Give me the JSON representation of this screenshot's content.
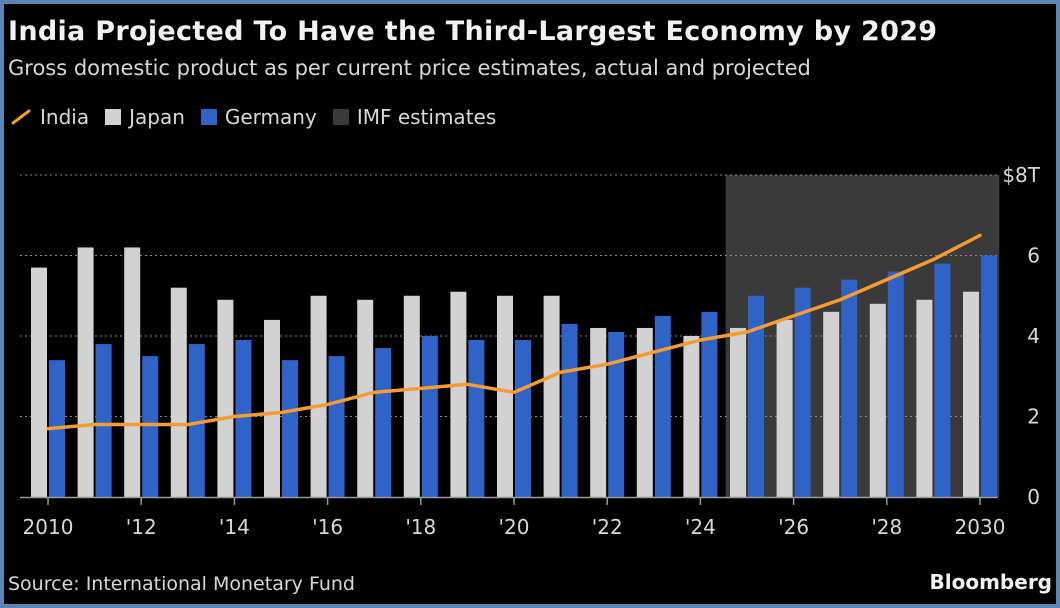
{
  "colors": {
    "india": "#f39c33",
    "japan": "#d2d2d2",
    "germany": "#2f63c7",
    "imf_band": "#3a3a3a",
    "background": "#000000",
    "grid": "#8a8a8a",
    "text": "#d8d8d8"
  },
  "legend": [
    {
      "label": "India",
      "swatch": "line",
      "color_key": "india"
    },
    {
      "label": "Japan",
      "swatch": "square",
      "color_key": "japan"
    },
    {
      "label": "Germany",
      "swatch": "square",
      "color_key": "germany"
    },
    {
      "label": "IMF estimates",
      "swatch": "square",
      "color_key": "imf_band"
    }
  ],
  "source": "Source: International Monetary Fund",
  "brand": "Bloomberg",
  "chart_data": {
    "type": "bar",
    "title": "India Projected To Have the Third-Largest Economy by 2029",
    "subtitle": "Gross domestic product as per current price estimates, actual and projected",
    "legend_position": "top-left",
    "grid": true,
    "y_axis_position": "right",
    "ylim": [
      0,
      8
    ],
    "yticks": [
      {
        "value": 0,
        "label": "0"
      },
      {
        "value": 2,
        "label": "2"
      },
      {
        "value": 4,
        "label": "4"
      },
      {
        "value": 6,
        "label": "6"
      },
      {
        "value": 8,
        "label": "$8T"
      }
    ],
    "categories": [
      2010,
      2011,
      2012,
      2013,
      2014,
      2015,
      2016,
      2017,
      2018,
      2019,
      2020,
      2021,
      2022,
      2023,
      2024,
      2025,
      2026,
      2027,
      2028,
      2029,
      2030
    ],
    "xtick_labels": [
      {
        "year": 2010,
        "label": "2010"
      },
      {
        "year": 2012,
        "label": "'12"
      },
      {
        "year": 2014,
        "label": "'14"
      },
      {
        "year": 2016,
        "label": "'16"
      },
      {
        "year": 2018,
        "label": "'18"
      },
      {
        "year": 2020,
        "label": "'20"
      },
      {
        "year": 2022,
        "label": "'22"
      },
      {
        "year": 2024,
        "label": "'24"
      },
      {
        "year": 2026,
        "label": "'26"
      },
      {
        "year": 2028,
        "label": "'28"
      },
      {
        "year": 2030,
        "label": "2030"
      }
    ],
    "imf_estimates_range": [
      2025,
      2030
    ],
    "series": [
      {
        "name": "Japan",
        "type": "bar",
        "color_key": "japan",
        "values": [
          5.7,
          6.2,
          6.2,
          5.2,
          4.9,
          4.4,
          5.0,
          4.9,
          5.0,
          5.1,
          5.0,
          5.0,
          4.2,
          4.2,
          4.0,
          4.2,
          4.4,
          4.6,
          4.8,
          4.9,
          5.1
        ]
      },
      {
        "name": "Germany",
        "type": "bar",
        "color_key": "germany",
        "values": [
          3.4,
          3.8,
          3.5,
          3.8,
          3.9,
          3.4,
          3.5,
          3.7,
          4.0,
          3.9,
          3.9,
          4.3,
          4.1,
          4.5,
          4.6,
          5.0,
          5.2,
          5.4,
          5.6,
          5.8,
          6.0
        ]
      },
      {
        "name": "India",
        "type": "line",
        "color_key": "india",
        "values": [
          1.7,
          1.8,
          1.8,
          1.8,
          2.0,
          2.1,
          2.3,
          2.6,
          2.7,
          2.8,
          2.6,
          3.1,
          3.3,
          3.6,
          3.9,
          4.1,
          4.5,
          4.9,
          5.4,
          5.9,
          6.5
        ]
      }
    ]
  }
}
